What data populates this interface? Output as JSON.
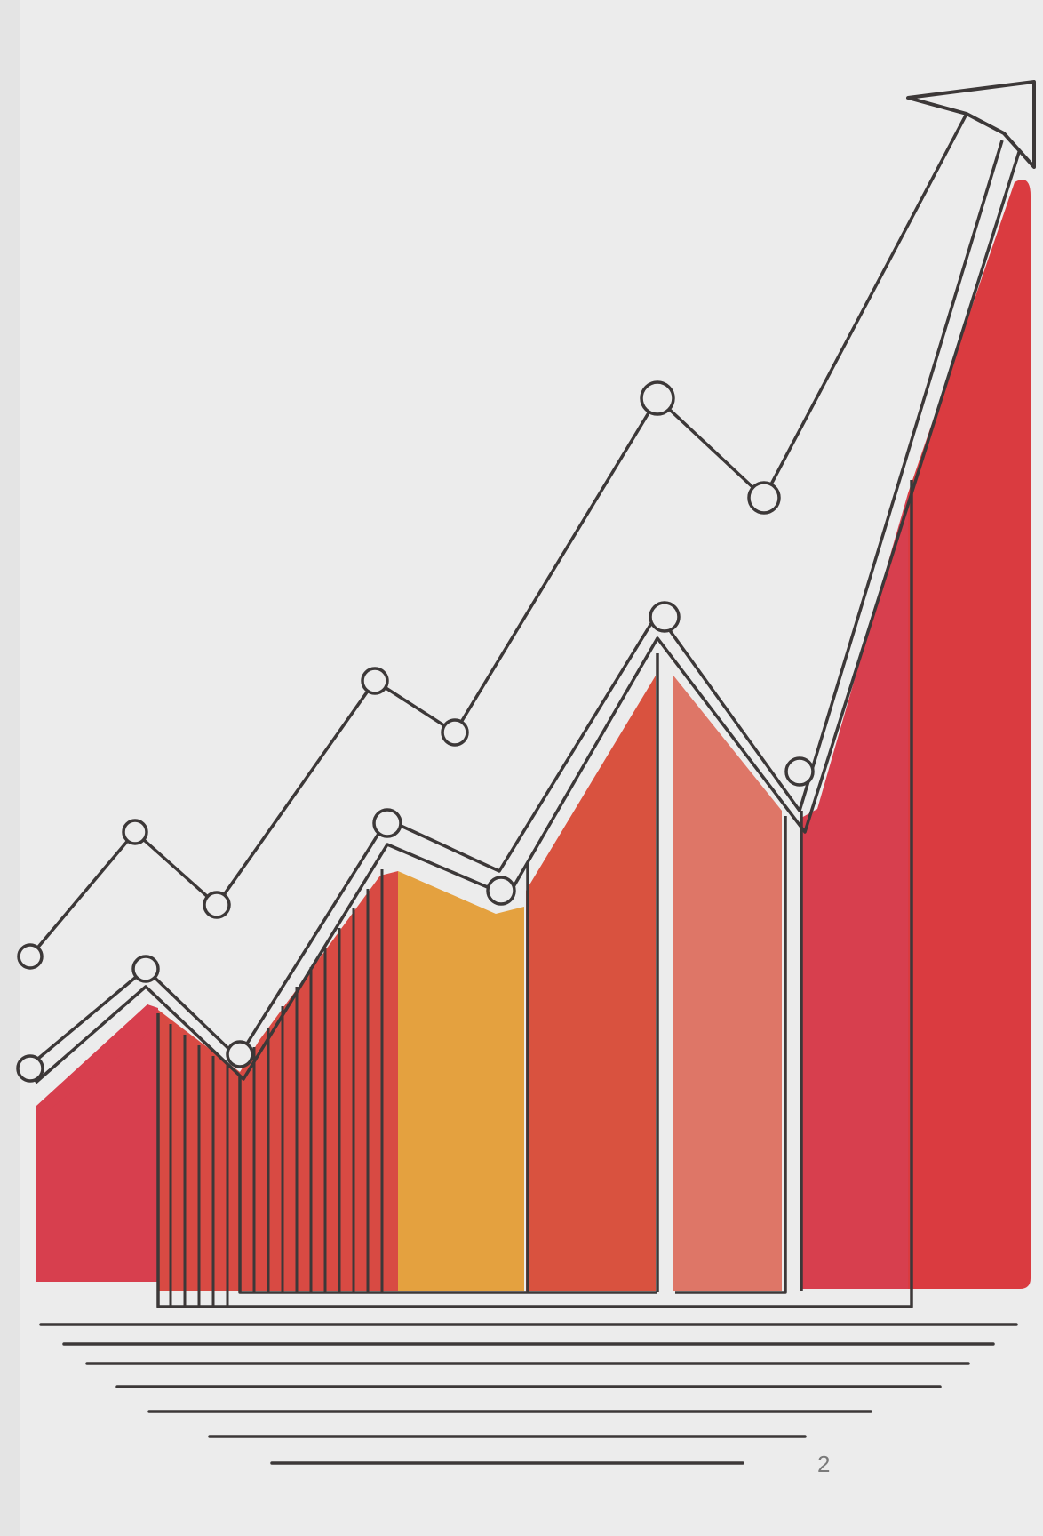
{
  "page_number": "2",
  "illustration": {
    "subject": "growth-chart-illustration",
    "palette": {
      "background": "#ececec",
      "ink": "#3c3838",
      "red": "#da3b40",
      "crimson": "#d73f4e",
      "orange_red": "#d9523f",
      "amber": "#e4a13f",
      "salmon": "#de7667"
    },
    "icons": [
      "trend-arrow-icon",
      "data-point-markers"
    ]
  }
}
